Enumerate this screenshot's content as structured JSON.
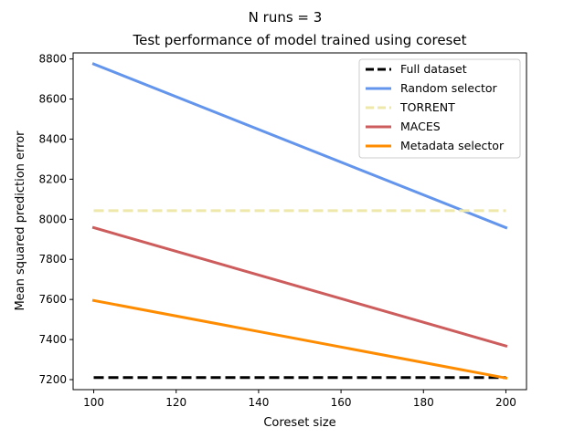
{
  "figure": {
    "suptitle": "N runs = 3"
  },
  "chart_data": {
    "type": "line",
    "title": "Test performance of model trained using coreset",
    "xlabel": "Coreset size",
    "ylabel": "Mean squared prediction error",
    "xlim": [
      95,
      205
    ],
    "ylim": [
      7150,
      8830
    ],
    "x_ticks": [
      100,
      120,
      140,
      160,
      180,
      200
    ],
    "y_ticks": [
      7200,
      7400,
      7600,
      7800,
      8000,
      8200,
      8400,
      8600,
      8800
    ],
    "grid": false,
    "legend_position": "top-right",
    "series": [
      {
        "name": "Full dataset",
        "x": [
          100,
          200
        ],
        "values": [
          7210,
          7210
        ],
        "color": "#000000",
        "style": "dashed"
      },
      {
        "name": "Random selector",
        "x": [
          100,
          200
        ],
        "values": [
          8775,
          7958
        ],
        "color": "#6495ED",
        "style": "solid"
      },
      {
        "name": "TORRENT",
        "x": [
          100,
          200
        ],
        "values": [
          8043,
          8043
        ],
        "color": "#EEE8AA",
        "style": "dashed"
      },
      {
        "name": "MACES",
        "x": [
          100,
          200
        ],
        "values": [
          7958,
          7368
        ],
        "color": "#CD5C5C",
        "style": "solid"
      },
      {
        "name": "Metadata selector",
        "x": [
          100,
          200
        ],
        "values": [
          7595,
          7208
        ],
        "color": "#FF8C00",
        "style": "solid"
      }
    ]
  }
}
